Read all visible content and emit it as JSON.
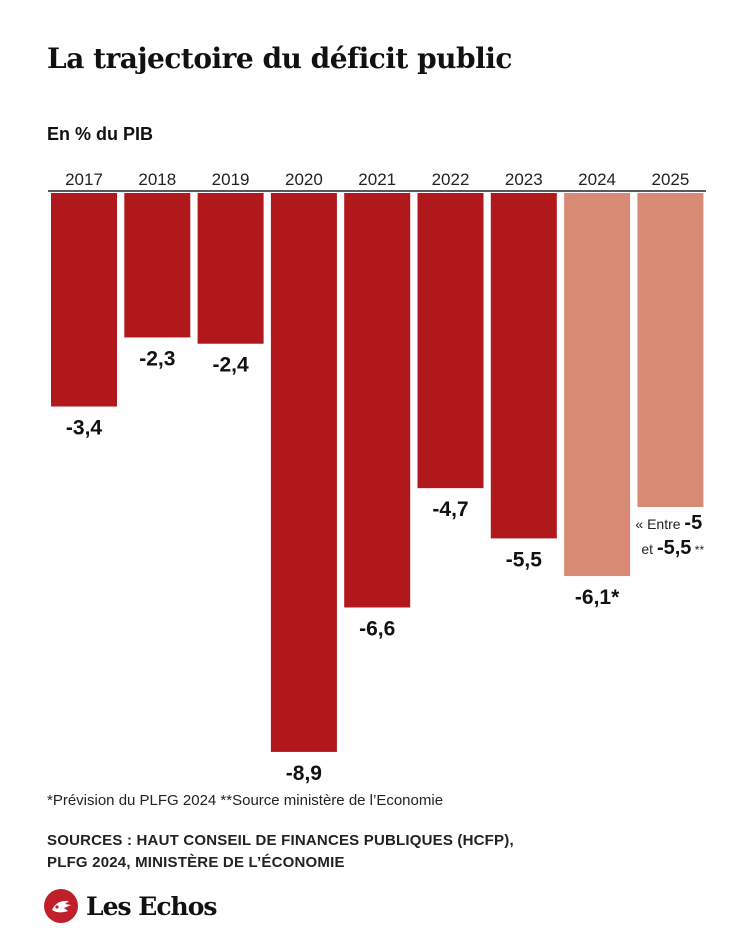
{
  "title": "La trajectoire du déficit public",
  "subtitle": "En % du PIB",
  "footnote": "*Prévision du PLFG 2024 **Source ministère de l’Economie",
  "sources_line1": "SOURCES : HAUT CONSEIL DE FINANCES PUBLIQUES (HCFP),",
  "sources_line2": "PLFG 2024, MINISTÈRE DE L’ÉCONOMIE",
  "brand": "Les Echos",
  "colors": {
    "actual": "#b0181c",
    "forecast": "#d98a74",
    "text": "#111111"
  },
  "chart_data": {
    "type": "bar",
    "categories": [
      "2017",
      "2018",
      "2019",
      "2020",
      "2021",
      "2022",
      "2023",
      "2024",
      "2025"
    ],
    "values": [
      -3.4,
      -2.3,
      -2.4,
      -8.9,
      -6.6,
      -4.7,
      -5.5,
      -6.1,
      -5.0
    ],
    "range_2025": [
      -5,
      -5.5
    ],
    "data_labels": [
      "-3,4",
      "-2,3",
      "-2,4",
      "-8,9",
      "-6,6",
      "-4,7",
      "-5,5",
      "-6,1*",
      ""
    ],
    "label_2025": {
      "prefix1": "« Entre ",
      "value1": "-5",
      "prefix2": "et ",
      "value2": "-5,5",
      "suffix2": " **"
    },
    "forecast": [
      false,
      false,
      false,
      false,
      false,
      false,
      false,
      true,
      true
    ],
    "ylim": [
      -9,
      0
    ],
    "grid": false,
    "legend": "none"
  }
}
